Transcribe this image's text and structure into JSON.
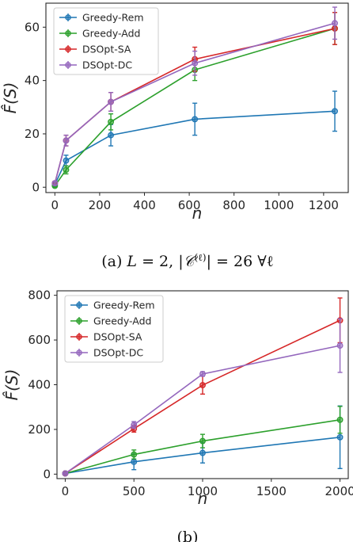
{
  "chart_data": [
    {
      "type": "line",
      "ylabel": "F̂(S)",
      "xlabel": "n",
      "xlim": [
        -40,
        1310
      ],
      "ylim": [
        -2,
        69
      ],
      "xticks": [
        0,
        200,
        400,
        600,
        800,
        1000,
        1200
      ],
      "yticks": [
        0,
        20,
        40,
        60
      ],
      "caption": "(a) L = 2, |C(ℓ)| = 26 ∀ℓ",
      "legend_position": "top-left",
      "grid": false,
      "x": [
        0,
        50,
        250,
        625,
        1250
      ],
      "series": [
        {
          "name": "Greedy-Rem",
          "color": "#1f77b4",
          "values": [
            1.0,
            10.0,
            19.5,
            25.5,
            28.5
          ],
          "errors": [
            0.6,
            2.0,
            4.0,
            6.0,
            7.5
          ]
        },
        {
          "name": "Greedy-Add",
          "color": "#2ca02c",
          "values": [
            0.5,
            6.5,
            24.5,
            44.0,
            59.5
          ],
          "errors": [
            0.5,
            1.5,
            3.0,
            4.0,
            6.0
          ]
        },
        {
          "name": "DSOpt-SA",
          "color": "#d62728",
          "values": [
            1.5,
            17.5,
            32.0,
            48.0,
            59.5
          ],
          "errors": [
            0.6,
            2.0,
            3.5,
            4.5,
            6.0
          ]
        },
        {
          "name": "DSOpt-DC",
          "color": "#9467bd",
          "values": [
            1.5,
            17.5,
            32.0,
            46.5,
            61.5
          ],
          "errors": [
            0.6,
            2.0,
            3.5,
            4.5,
            6.0
          ]
        }
      ]
    },
    {
      "type": "line",
      "ylabel": "F̂(S)",
      "xlabel": "n",
      "xlim": [
        -60,
        2060
      ],
      "ylim": [
        -20,
        820
      ],
      "xticks": [
        0,
        500,
        1000,
        1500,
        2000
      ],
      "yticks": [
        0,
        200,
        400,
        600,
        800
      ],
      "caption": "(b)",
      "legend_position": "top-left",
      "grid": false,
      "x": [
        0,
        500,
        1000,
        2000
      ],
      "series": [
        {
          "name": "Greedy-Rem",
          "color": "#1f77b4",
          "values": [
            3,
            55,
            95,
            165
          ],
          "errors": [
            3,
            35,
            45,
            140
          ]
        },
        {
          "name": "Greedy-Add",
          "color": "#2ca02c",
          "values": [
            3,
            88,
            148,
            243
          ],
          "errors": [
            3,
            20,
            30,
            60
          ]
        },
        {
          "name": "DSOpt-SA",
          "color": "#d62728",
          "values": [
            3,
            203,
            398,
            688
          ],
          "errors": [
            3,
            15,
            40,
            100
          ]
        },
        {
          "name": "DSOpt-DC",
          "color": "#9467bd",
          "values": [
            3,
            220,
            448,
            575
          ],
          "errors": [
            3,
            15,
            10,
            120
          ]
        }
      ]
    }
  ]
}
